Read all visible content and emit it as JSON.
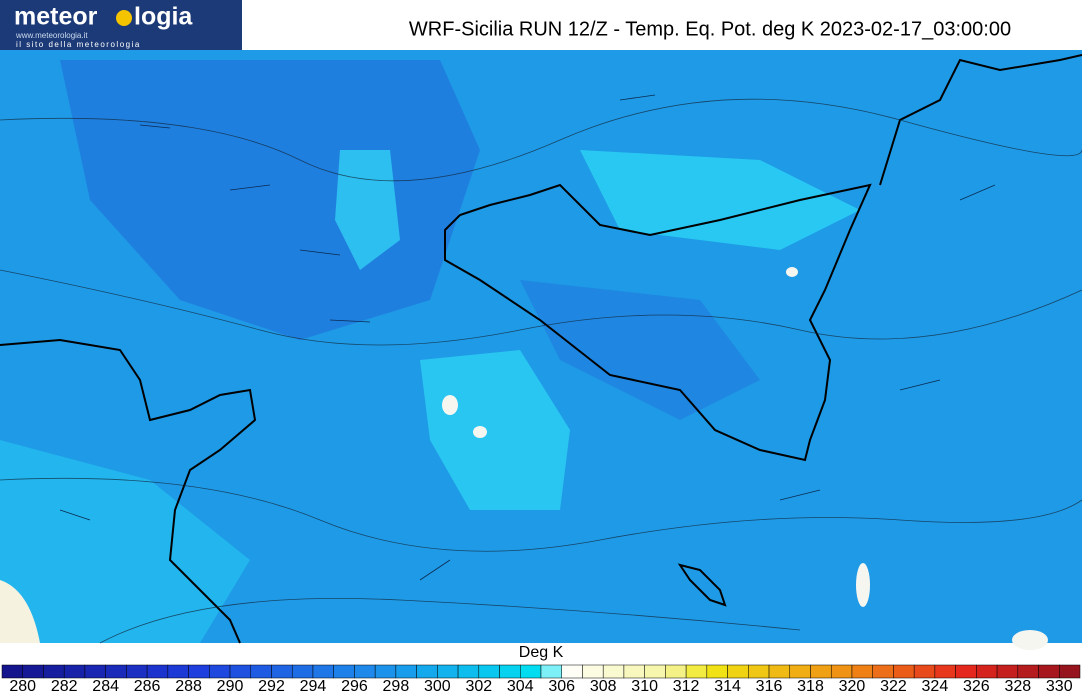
{
  "header": {
    "logo": {
      "name_left": "meteor",
      "name_right": "logia",
      "url": "www.meteorologia.it",
      "tagline": "il sito della meteorologia"
    },
    "title": "WRF-Sicilia RUN 12/Z - Temp. Eq. Pot. deg K 2023-02-17_03:00:00"
  },
  "colorbar": {
    "label": "Deg K",
    "ticks": [
      280,
      282,
      284,
      286,
      288,
      290,
      292,
      294,
      296,
      298,
      300,
      302,
      304,
      306,
      308,
      310,
      312,
      314,
      316,
      318,
      320,
      322,
      324,
      326,
      328,
      330
    ]
  }
}
